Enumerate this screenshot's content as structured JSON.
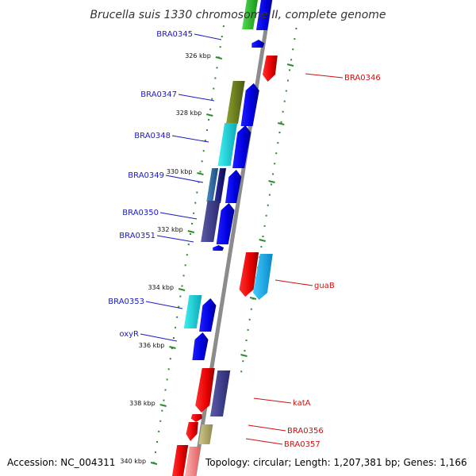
{
  "title": "Brucella suis 1330 chromosome II, complete genome",
  "footer": {
    "accession": "Accession: NC_004311",
    "topology": "Topology: circular; Length: 1,207,381 bp; Genes: 1,166"
  },
  "colors": {
    "backbone": "#8c8c8c",
    "tick": "#2d8a2d",
    "forward_label": "#1a1ac8",
    "reverse_label": "#d01010"
  },
  "ticks": [
    "326 kbp",
    "328 kbp",
    "330 kbp",
    "332 kbp",
    "334 kbp",
    "336 kbp",
    "338 kbp",
    "340 kbp"
  ],
  "genes_left": [
    "BRA0345",
    "BRA0347",
    "BRA0348",
    "BRA0349",
    "BRA0350",
    "BRA0351",
    "BRA0353",
    "oxyR"
  ],
  "genes_right": [
    "BRA0346",
    "guaB",
    "katA",
    "BRA0356",
    "BRA0357"
  ]
}
